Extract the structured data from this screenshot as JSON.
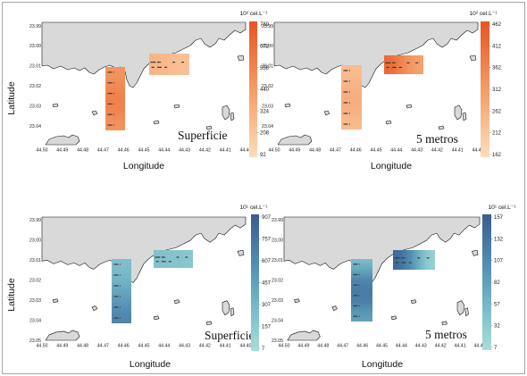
{
  "figure": {
    "background": "#ffffff",
    "land_color": "#d9d9d9"
  },
  "chart_data": [
    {
      "type": "heatmap",
      "panel_label": "Superficie",
      "xlabel": "Longitude",
      "ylabel": "Latitude",
      "x_ticks": [
        "44.50",
        "44.49",
        "44.48",
        "44.47",
        "44.46",
        "44.45",
        "44.44",
        "44.43",
        "44.42",
        "44.41",
        "44.40"
      ],
      "y_ticks": [
        "23.99",
        "23.00",
        "23.01",
        "23.02",
        "23.03",
        "23.04"
      ],
      "colorbar": {
        "label": "10² cel.L⁻¹",
        "ticks": [
          "789",
          "672",
          "556",
          "440",
          "324",
          "208",
          "92"
        ],
        "range": [
          92,
          789
        ],
        "colors": [
          "#fddcbc",
          "#fac8a0",
          "#f7b384",
          "#f49c68",
          "#f0844f",
          "#ec6c38",
          "#e65526"
        ]
      },
      "transects": {
        "vertical": [
          470,
          520,
          560,
          580,
          540,
          480
        ],
        "horizontal": [
          320,
          300,
          280,
          260,
          250
        ]
      }
    },
    {
      "type": "heatmap",
      "panel_label": "5 metros",
      "xlabel": "Longitude",
      "x_ticks": [
        "44.50",
        "44.49",
        "44.48",
        "44.47",
        "44.46",
        "44.45",
        "44.44",
        "44.43",
        "44.42",
        "44.41",
        "44.40"
      ],
      "y_ticks": [
        "23.99",
        "23.00",
        "23.01",
        "23.02",
        "23.03",
        "23.04"
      ],
      "colorbar": {
        "label": "10² cel.L⁻¹",
        "ticks": [
          "462",
          "412",
          "362",
          "312",
          "262",
          "212",
          "162"
        ],
        "range": [
          162,
          462
        ],
        "colors": [
          "#fddcbc",
          "#fac8a0",
          "#f7b384",
          "#f49c68",
          "#f0844f",
          "#ec6c38",
          "#e65526"
        ]
      },
      "transects": {
        "vertical": [
          240,
          250,
          270,
          280,
          260,
          240
        ],
        "horizontal": [
          420,
          390,
          350,
          320,
          300
        ]
      }
    },
    {
      "type": "heatmap",
      "panel_label": "Superficie",
      "xlabel": "Longitude",
      "ylabel": "Latitude",
      "x_ticks": [
        "44.50",
        "44.49",
        "44.48",
        "44.47",
        "44.46",
        "44.45",
        "44.44",
        "44.43",
        "44.42",
        "44.41",
        "44.40"
      ],
      "y_ticks": [
        "23.99",
        "23.00",
        "23.01",
        "23.02",
        "23.03",
        "23.04",
        "23.05"
      ],
      "colorbar": {
        "label": "10¹ cel.L⁻¹",
        "ticks": [
          "907",
          "757",
          "607",
          "457",
          "307",
          "157",
          "7"
        ],
        "range": [
          7,
          907
        ],
        "colors": [
          "#abdcd8",
          "#90ccd0",
          "#77b8c7",
          "#60a0bb",
          "#5089ae",
          "#44739f",
          "#3a5d8e"
        ]
      },
      "transects": {
        "vertical": [
          250,
          300,
          380,
          460,
          560,
          640
        ],
        "horizontal": [
          240,
          230,
          220,
          210,
          200
        ]
      }
    },
    {
      "type": "heatmap",
      "panel_label": "5 metros",
      "xlabel": "Longitude",
      "x_ticks": [
        "44.50",
        "44.49",
        "44.48",
        "44.47",
        "44.46",
        "44.45",
        "44.44",
        "44.43",
        "44.42",
        "44.41",
        "44.40"
      ],
      "y_ticks": [
        "23.99",
        "23.00",
        "23.01",
        "23.02",
        "23.03",
        "23.04",
        "23.05"
      ],
      "colorbar": {
        "label": "10¹ cel.L⁻¹",
        "ticks": [
          "157",
          "132",
          "107",
          "82",
          "57",
          "32",
          "7"
        ],
        "range": [
          7,
          157
        ],
        "colors": [
          "#abdcd8",
          "#90ccd0",
          "#77b8c7",
          "#60a0bb",
          "#5089ae",
          "#44739f",
          "#3a5d8e"
        ]
      },
      "transects": {
        "vertical": [
          50,
          100,
          120,
          125,
          110,
          80
        ],
        "horizontal": [
          145,
          120,
          90,
          50,
          25
        ]
      }
    }
  ]
}
